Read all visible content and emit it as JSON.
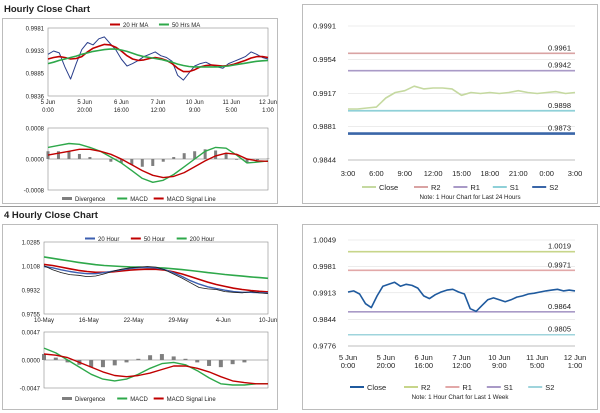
{
  "sections": {
    "hourly_title": "Hourly Close Chart",
    "four_hourly_title": "4 Hourly Close Chart"
  },
  "colors": {
    "price": "#2b3f8c",
    "ma20": "#c00000",
    "ma50": "#2ea84a",
    "ma200": "#2ea84a",
    "macd": "#2ea84a",
    "signal": "#c00000",
    "divergence": "#7f7f7f",
    "close_light": "#c5d9a0",
    "close_dark": "#1f5a9e",
    "r2": "#d9a3a3",
    "r1": "#a99ac7",
    "s1": "#8fd0d8",
    "s2": "#3a66a8",
    "r2_4h": "#c7d58a",
    "r1_4h": "#e2a8a8",
    "s1_4h": "#a99ac7",
    "s2_4h": "#9fd4dc",
    "grid": "#d9d9d9"
  },
  "chart_data": [
    {
      "id": "hourly_price",
      "type": "line",
      "legend": [
        "20 Hr MA",
        "50 Hrs MA"
      ],
      "x_ticks": [
        [
          "5 Jun",
          "0:00"
        ],
        [
          "5 Jun",
          "20:00"
        ],
        [
          "6 Jun",
          "16:00"
        ],
        [
          "7 Jun",
          "12:00"
        ],
        [
          "10 Jun",
          "9:00"
        ],
        [
          "11 Jun",
          "5:00"
        ],
        [
          "12 Jun",
          "1:00"
        ]
      ],
      "y_ticks": [
        "0.9981",
        "0.9933",
        "0.9885",
        "0.9836"
      ],
      "ylim": [
        0.9836,
        0.9981
      ],
      "series": [
        {
          "name": "price",
          "values": [
            0.9925,
            0.9932,
            0.9928,
            0.9898,
            0.9872,
            0.9905,
            0.9935,
            0.995,
            0.9945,
            0.9958,
            0.9962,
            0.9948,
            0.9935,
            0.9915,
            0.99,
            0.9905,
            0.9912,
            0.992,
            0.9925,
            0.993,
            0.9922,
            0.9918,
            0.991,
            0.988,
            0.987,
            0.9885,
            0.99,
            0.9905,
            0.9908,
            0.9902,
            0.9898,
            0.9895,
            0.9905,
            0.991,
            0.9915,
            0.992,
            0.993,
            0.9925,
            0.9918,
            0.9915
          ]
        },
        {
          "name": "20 Hr MA",
          "values": [
            0.9915,
            0.9918,
            0.992,
            0.9918,
            0.9915,
            0.9916,
            0.992,
            0.993,
            0.9938,
            0.9942,
            0.9946,
            0.9945,
            0.994,
            0.9932,
            0.9922,
            0.9915,
            0.9912,
            0.9913,
            0.9916,
            0.9918,
            0.9916,
            0.9912,
            0.9905,
            0.9895,
            0.9888,
            0.9888,
            0.9892,
            0.9898,
            0.9901,
            0.9902,
            0.9901,
            0.99,
            0.9901,
            0.9904,
            0.9908,
            0.9912,
            0.9917,
            0.992,
            0.992,
            0.9918
          ]
        },
        {
          "name": "50 Hrs MA",
          "values": [
            0.9905,
            0.9908,
            0.9912,
            0.9915,
            0.9918,
            0.9921,
            0.9925,
            0.9928,
            0.9931,
            0.9933,
            0.9935,
            0.9936,
            0.9936,
            0.9934,
            0.9931,
            0.9927,
            0.9923,
            0.992,
            0.9918,
            0.9916,
            0.9914,
            0.9911,
            0.9908,
            0.9904,
            0.9901,
            0.9899,
            0.9898,
            0.9898,
            0.9898,
            0.9898,
            0.9898,
            0.9899,
            0.99,
            0.9902,
            0.9904,
            0.9906,
            0.9908,
            0.991,
            0.9911,
            0.9912
          ]
        }
      ]
    },
    {
      "id": "hourly_macd",
      "type": "line",
      "legend": [
        "Divergence",
        "MACD",
        "MACD Signal Line"
      ],
      "y_ticks": [
        "0.0008",
        "0.0000",
        "-0.0008"
      ],
      "ylim": [
        -0.0008,
        0.0008
      ],
      "series": [
        {
          "name": "MACD",
          "values": [
            0.0003,
            0.00035,
            0.0004,
            0.00038,
            0.0003,
            0.0002,
            5e-05,
            -0.0001,
            -0.0003,
            -0.0005,
            -0.0006,
            -0.00055,
            -0.0004,
            -0.0002,
            0.0,
            0.0002,
            0.0003,
            0.00028,
            0.0001,
            -0.0001,
            -8e-05,
            -5e-05
          ]
        },
        {
          "name": "MACD Signal Line",
          "values": [
            0.0001,
            0.00015,
            0.0002,
            0.00025,
            0.00025,
            0.0002,
            0.00012,
            0.0,
            -0.00015,
            -0.0003,
            -0.00042,
            -0.00048,
            -0.00045,
            -0.00035,
            -0.0002,
            -5e-05,
            8e-05,
            0.00015,
            0.00012,
            0.0,
            -5e-05,
            -6e-05
          ]
        },
        {
          "name": "Divergence",
          "values": [
            0.0002,
            0.0002,
            0.0002,
            0.00013,
            5e-05,
            0.0,
            -7e-05,
            -0.0001,
            -0.00015,
            -0.0002,
            -0.00018,
            -7e-05,
            5e-05,
            0.00015,
            0.0002,
            0.00025,
            0.00022,
            0.00013,
            -2e-05,
            -0.0001,
            -3e-05,
            1e-05
          ]
        }
      ]
    },
    {
      "id": "hourly_pivot",
      "type": "line",
      "legend": [
        "Close",
        "R2",
        "R1",
        "S1",
        "S2"
      ],
      "x_ticks": [
        "3:00",
        "6:00",
        "9:00",
        "12:00",
        "15:00",
        "18:00",
        "21:00",
        "0:00",
        "3:00"
      ],
      "y_ticks": [
        "0.9991",
        "0.9954",
        "0.9917",
        "0.9881",
        "0.9844"
      ],
      "ylim": [
        0.9844,
        0.9991
      ],
      "note": "Note: 1 Hour Chart for Last 24 Hours",
      "levels": [
        {
          "name": "R2",
          "value": 0.9961,
          "label": "0.9961"
        },
        {
          "name": "R1",
          "value": 0.9942,
          "label": "0.9942"
        },
        {
          "name": "S1",
          "value": 0.9898,
          "label": "0.9898"
        },
        {
          "name": "S2",
          "value": 0.9873,
          "label": "0.9873"
        }
      ],
      "series": [
        {
          "name": "Close",
          "values": [
            0.99,
            0.99,
            0.9901,
            0.9902,
            0.9912,
            0.9918,
            0.992,
            0.9925,
            0.9922,
            0.9923,
            0.9923,
            0.9922,
            0.9915,
            0.9918,
            0.9917,
            0.9918,
            0.9917,
            0.9918,
            0.992,
            0.9918,
            0.9917,
            0.9918,
            0.9919,
            0.9917,
            0.9918
          ]
        }
      ]
    },
    {
      "id": "four_hourly_price",
      "type": "line",
      "legend": [
        "20 Hour",
        "50 Hour",
        "200 Hour"
      ],
      "x_ticks": [
        "10-May",
        "16-May",
        "22-May",
        "29-May",
        "4-Jun",
        "10-Jun"
      ],
      "y_ticks": [
        "1.0285",
        "1.0108",
        "0.9932",
        "0.9755"
      ],
      "ylim": [
        0.9755,
        1.0285
      ],
      "series": [
        {
          "name": "price",
          "values": [
            1.011,
            1.008,
            1.006,
            1.0045,
            1.004,
            1.003,
            1.0035,
            1.005,
            1.007,
            1.0085,
            1.0095,
            1.01,
            1.0105,
            1.01,
            1.008,
            1.005,
            1.002,
            0.9985,
            0.995,
            0.994,
            0.9935,
            0.992,
            0.9915,
            0.991,
            0.992,
            0.991,
            0.9905
          ]
        },
        {
          "name": "20 Hour",
          "values": [
            1.0105,
            1.0095,
            1.008,
            1.0068,
            1.0058,
            1.0052,
            1.0052,
            1.006,
            1.007,
            1.008,
            1.009,
            1.0096,
            1.0098,
            1.0094,
            1.0082,
            1.006,
            1.0032,
            1.0,
            0.9975,
            0.9955,
            0.9942,
            0.993,
            0.992,
            0.9915,
            0.9915,
            0.9912,
            0.991
          ]
        },
        {
          "name": "50 Hour",
          "values": [
            1.012,
            1.0112,
            1.01,
            1.0088,
            1.0076,
            1.0068,
            1.0062,
            1.0062,
            1.0066,
            1.0072,
            1.0078,
            1.0082,
            1.0085,
            1.0084,
            1.0078,
            1.0066,
            1.005,
            1.003,
            1.001,
            0.999,
            0.9972,
            0.9958,
            0.9945,
            0.9935,
            0.9928,
            0.9922,
            0.9918
          ]
        },
        {
          "name": "200 Hour",
          "values": [
            1.0175,
            1.0165,
            1.0155,
            1.0145,
            1.0135,
            1.0126,
            1.0118,
            1.0112,
            1.0108,
            1.0105,
            1.0102,
            1.01,
            1.0098,
            1.0096,
            1.0093,
            1.0088,
            1.0082,
            1.0075,
            1.0068,
            1.006,
            1.0053,
            1.0046,
            1.004,
            1.0034,
            1.0028,
            1.0023,
            1.0018
          ]
        }
      ]
    },
    {
      "id": "four_hourly_macd",
      "type": "line",
      "legend": [
        "Divergence",
        "MACD",
        "MACD Signal Line"
      ],
      "y_ticks": [
        "0.0047",
        "0.0000",
        "-0.0047"
      ],
      "ylim": [
        -0.0047,
        0.0047
      ],
      "series": [
        {
          "name": "MACD",
          "values": [
            0.002,
            0.0012,
            0.0,
            -0.0012,
            -0.0024,
            -0.0032,
            -0.0035,
            -0.0032,
            -0.0024,
            -0.0014,
            -0.0006,
            -0.0004,
            -0.0008,
            -0.0018,
            -0.003,
            -0.004,
            -0.0042,
            -0.0042,
            -0.004,
            -0.004
          ]
        },
        {
          "name": "MACD Signal Line",
          "values": [
            0.001,
            0.0008,
            0.0004,
            -0.0004,
            -0.0012,
            -0.002,
            -0.0026,
            -0.0028,
            -0.0026,
            -0.0022,
            -0.0016,
            -0.001,
            -0.001,
            -0.0014,
            -0.002,
            -0.0028,
            -0.0035,
            -0.0038,
            -0.004,
            -0.004
          ]
        },
        {
          "name": "Divergence",
          "values": [
            0.001,
            0.0004,
            -0.0004,
            -0.0008,
            -0.0012,
            -0.0012,
            -0.0009,
            -0.0004,
            0.0002,
            0.0008,
            0.001,
            0.0006,
            0.0002,
            -0.0004,
            -0.001,
            -0.0012,
            -0.0007,
            -0.0004,
            0.0,
            0.0
          ]
        }
      ]
    },
    {
      "id": "four_hourly_pivot",
      "type": "line",
      "legend": [
        "Close",
        "R2",
        "R1",
        "S1",
        "S2"
      ],
      "x_ticks": [
        [
          "5 Jun",
          "0:00"
        ],
        [
          "5 Jun",
          "20:00"
        ],
        [
          "6 Jun",
          "16:00"
        ],
        [
          "7 Jun",
          "12:00"
        ],
        [
          "10 Jun",
          "9:00"
        ],
        [
          "11 Jun",
          "5:00"
        ],
        [
          "12 Jun",
          "1:00"
        ]
      ],
      "y_ticks": [
        "1.0049",
        "0.9981",
        "0.9913",
        "0.9844",
        "0.9776"
      ],
      "ylim": [
        0.9776,
        1.0049
      ],
      "note": "Note: 1 Hour Chart for Last 1 Week",
      "levels": [
        {
          "name": "R2",
          "value": 1.0019,
          "label": "1.0019"
        },
        {
          "name": "R1",
          "value": 0.9971,
          "label": "0.9971"
        },
        {
          "name": "S1",
          "value": 0.9864,
          "label": "0.9864"
        },
        {
          "name": "S2",
          "value": 0.9805,
          "label": "0.9805"
        }
      ],
      "series": [
        {
          "name": "Close",
          "values": [
            0.9915,
            0.9918,
            0.991,
            0.9885,
            0.9875,
            0.9905,
            0.993,
            0.9935,
            0.994,
            0.993,
            0.9935,
            0.9932,
            0.9925,
            0.9905,
            0.9898,
            0.9908,
            0.9915,
            0.992,
            0.9922,
            0.9915,
            0.991,
            0.9872,
            0.9865,
            0.988,
            0.9895,
            0.99,
            0.9895,
            0.989,
            0.9895,
            0.9902,
            0.9905,
            0.991,
            0.9912,
            0.9915,
            0.9918,
            0.992,
            0.9922,
            0.9918,
            0.992,
            0.9918
          ]
        }
      ]
    }
  ]
}
